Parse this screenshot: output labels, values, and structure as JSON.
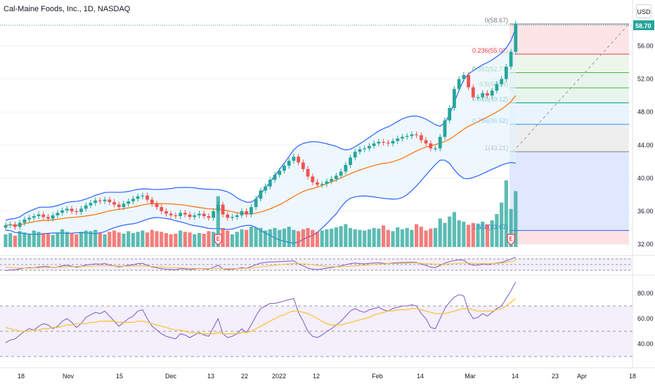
{
  "symbol_title": "Cal-Maine Foods, Inc., 1D, NASDAQ",
  "currency_label": "USD",
  "colors": {
    "up": "#26a69a",
    "down": "#ef5350",
    "bollinger_band": "#2962ff",
    "bollinger_fill": "#e3f2fd",
    "sma": "#ff6d00",
    "rsi": "#7e57c2",
    "rsi_ma": "#fbc02d",
    "price_tag": "#26a69a"
  },
  "chart_data": {
    "type": "candlestick",
    "price_axis": {
      "ticks": [
        "56.00",
        "52.00",
        "48.00",
        "44.00",
        "40.00",
        "36.00",
        "32.00"
      ],
      "last_price": "58.70"
    },
    "rsi_axis": {
      "ticks": [
        "80.00",
        "60.00",
        "40.00"
      ],
      "bands": [
        30,
        50,
        70
      ]
    },
    "time_axis": [
      "18",
      "Nov",
      "15",
      "Dec",
      "13",
      "22",
      "2022",
      "12",
      "Feb",
      "14",
      "Mar",
      "14",
      "23",
      "Apr",
      "18"
    ],
    "fibonacci": [
      {
        "label": "0(58.67)",
        "level": 58.67,
        "color": "#787b86"
      },
      {
        "label": "0.236(55.02)",
        "level": 55.02,
        "color": "#f23645"
      },
      {
        "label": "0.382(52.77)",
        "level": 52.77,
        "color": "#4caf50"
      },
      {
        "label": "0.5(50.94)",
        "level": 50.94,
        "color": "#4caf50"
      },
      {
        "label": "0.618(49.12)",
        "level": 49.12,
        "color": "#089981"
      },
      {
        "label": "0.786(46.52)",
        "level": 46.52,
        "color": "#2196f3"
      },
      {
        "label": "1(43.21)",
        "level": 43.21,
        "color": "#787b86"
      },
      {
        "label": "1.618(33.67)",
        "level": 33.67,
        "color": "#2962ff"
      }
    ],
    "earnings_markers": [
      "E",
      "E"
    ],
    "candles_close": [
      34.3,
      34.4,
      34.1,
      34.6,
      35.0,
      35.2,
      35.4,
      35.6,
      35.3,
      35.1,
      35.5,
      35.8,
      36.1,
      36.3,
      36.0,
      35.9,
      36.3,
      36.7,
      37.0,
      37.3,
      37.2,
      37.4,
      37.1,
      36.8,
      36.5,
      36.9,
      37.2,
      37.5,
      37.8,
      37.9,
      37.4,
      36.9,
      36.5,
      36.0,
      35.7,
      35.5,
      35.4,
      35.8,
      35.6,
      35.3,
      35.5,
      35.7,
      35.4,
      35.2,
      36.0,
      36.8,
      35.6,
      35.2,
      35.3,
      35.5,
      36.0,
      35.6,
      36.5,
      37.5,
      38.5,
      39.0,
      39.8,
      40.4,
      40.9,
      41.5,
      42.1,
      42.6,
      41.9,
      41.1,
      40.2,
      39.5,
      39.2,
      39.3,
      39.6,
      39.9,
      40.3,
      40.8,
      41.6,
      42.5,
      43.2,
      43.5,
      43.6,
      43.9,
      44.2,
      44.4,
      44.3,
      44.2,
      44.5,
      44.8,
      45.0,
      45.1,
      45.3,
      45.2,
      44.6,
      44.2,
      43.6,
      43.6,
      45.0,
      47.0,
      48.5,
      50.8,
      52.0,
      52.5,
      51.0,
      49.8,
      49.8,
      50.3,
      50.0,
      50.6,
      51.4,
      52.0,
      53.5,
      55.3,
      58.7
    ],
    "candles_open": [
      34.0,
      34.3,
      34.4,
      34.1,
      34.6,
      35.0,
      35.2,
      35.4,
      35.6,
      35.3,
      35.1,
      35.5,
      35.8,
      36.1,
      36.3,
      36.0,
      35.9,
      36.3,
      36.7,
      37.0,
      37.3,
      37.2,
      37.4,
      37.1,
      36.8,
      36.5,
      36.9,
      37.2,
      37.5,
      37.8,
      37.9,
      37.4,
      36.9,
      36.5,
      36.0,
      35.7,
      35.5,
      35.4,
      35.8,
      35.6,
      35.3,
      35.5,
      35.7,
      35.4,
      35.2,
      36.0,
      36.8,
      35.6,
      35.2,
      35.3,
      35.5,
      36.0,
      35.6,
      36.5,
      37.5,
      38.5,
      39.0,
      39.8,
      40.4,
      40.9,
      41.5,
      42.1,
      42.6,
      41.9,
      41.1,
      40.2,
      39.5,
      39.2,
      39.3,
      39.6,
      39.9,
      40.3,
      40.8,
      41.6,
      42.5,
      43.2,
      43.5,
      43.6,
      43.9,
      44.2,
      44.4,
      44.3,
      44.2,
      44.5,
      44.8,
      45.0,
      45.1,
      45.3,
      45.2,
      44.6,
      44.2,
      43.6,
      43.6,
      45.0,
      47.0,
      48.5,
      50.8,
      52.0,
      52.5,
      51.0,
      49.8,
      49.8,
      50.3,
      50.0,
      50.6,
      51.4,
      52.0,
      53.5,
      55.3
    ],
    "volume": [
      20,
      22,
      18,
      25,
      23,
      20,
      26,
      24,
      22,
      21,
      19,
      23,
      28,
      24,
      22,
      20,
      24,
      26,
      25,
      27,
      22,
      20,
      24,
      26,
      23,
      21,
      25,
      22,
      24,
      26,
      23,
      27,
      25,
      24,
      22,
      20,
      21,
      26,
      24,
      23,
      20,
      22,
      21,
      25,
      24,
      80,
      30,
      26,
      20,
      24,
      28,
      27,
      32,
      31,
      30,
      26,
      28,
      30,
      27,
      29,
      32,
      27,
      25,
      28,
      30,
      27,
      24,
      26,
      28,
      29,
      31,
      33,
      36,
      30,
      28,
      27,
      26,
      28,
      30,
      29,
      34,
      27,
      25,
      31,
      28,
      30,
      27,
      36,
      32,
      26,
      29,
      30,
      45,
      38,
      48,
      55,
      42,
      40,
      35,
      38,
      37,
      40,
      36,
      42,
      52,
      70,
      105,
      60,
      88
    ],
    "rsi": [
      41,
      43,
      44,
      47,
      50,
      52,
      51,
      54,
      56,
      55,
      52,
      54,
      58,
      60,
      57,
      53,
      56,
      61,
      63,
      65,
      64,
      66,
      62,
      58,
      54,
      57,
      60,
      62,
      66,
      67,
      60,
      54,
      51,
      48,
      46,
      45,
      44,
      48,
      47,
      45,
      47,
      49,
      47,
      46,
      53,
      60,
      48,
      45,
      46,
      48,
      52,
      49,
      55,
      62,
      68,
      70,
      72,
      72,
      73,
      74,
      75,
      76,
      65,
      58,
      50,
      46,
      45,
      47,
      50,
      52,
      55,
      58,
      62,
      66,
      68,
      66,
      65,
      67,
      68,
      69,
      67,
      66,
      68,
      69,
      70,
      70,
      71,
      70,
      64,
      60,
      53,
      52,
      60,
      68,
      73,
      77,
      79,
      78,
      66,
      60,
      61,
      64,
      62,
      65,
      68,
      70,
      76,
      82,
      89
    ],
    "rsi_ma": [
      53,
      52,
      51,
      50,
      50,
      50,
      51,
      51,
      52,
      52,
      53,
      53,
      54,
      55,
      55,
      56,
      56,
      56,
      57,
      57,
      58,
      58,
      58,
      58,
      57,
      57,
      57,
      57,
      58,
      58,
      57,
      56,
      55,
      54,
      53,
      52,
      51,
      51,
      50,
      49,
      49,
      48,
      48,
      48,
      48,
      49,
      48,
      48,
      48,
      48,
      49,
      49,
      50,
      52,
      54,
      56,
      58,
      60,
      62,
      63,
      65,
      66,
      66,
      65,
      64,
      62,
      60,
      58,
      56,
      55,
      55,
      55,
      56,
      57,
      58,
      59,
      60,
      61,
      63,
      64,
      65,
      66,
      66,
      67,
      67,
      67,
      68,
      68,
      67,
      66,
      65,
      64,
      64,
      64,
      65,
      66,
      67,
      68,
      68,
      67,
      66,
      66,
      66,
      66,
      67,
      68,
      70,
      73,
      76
    ]
  }
}
